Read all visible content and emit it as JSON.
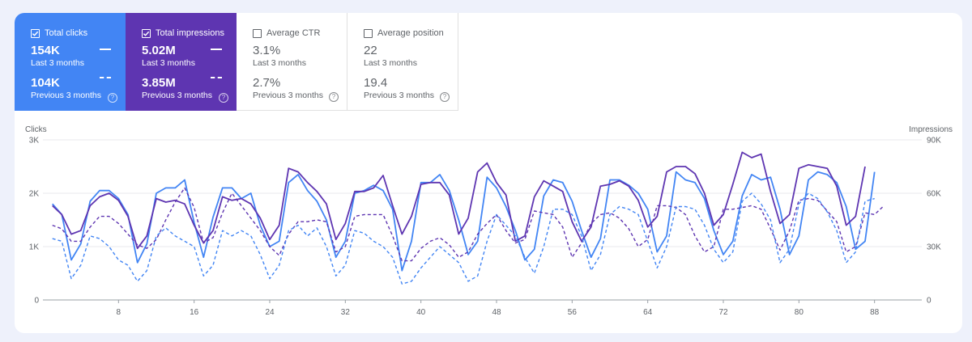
{
  "metrics": {
    "total_clicks": {
      "label": "Total clicks",
      "checked": true,
      "current": "154K",
      "current_label": "Last 3 months",
      "previous": "104K",
      "previous_label": "Previous 3 months"
    },
    "total_impressions": {
      "label": "Total impressions",
      "checked": true,
      "current": "5.02M",
      "current_label": "Last 3 months",
      "previous": "3.85M",
      "previous_label": "Previous 3 months"
    },
    "average_ctr": {
      "label": "Average CTR",
      "checked": false,
      "current": "3.1%",
      "current_label": "Last 3 months",
      "previous": "2.7%",
      "previous_label": "Previous 3 months"
    },
    "average_position": {
      "label": "Average position",
      "checked": false,
      "current": "22",
      "current_label": "Last 3 months",
      "previous": "19.4",
      "previous_label": "Previous 3 months"
    }
  },
  "help_glyph": "?",
  "colors": {
    "clicks": "#4285f4",
    "impressions": "#5e35b1",
    "ctr_off": "#5f6368"
  },
  "chart_data": {
    "type": "line",
    "ylabel": "Clicks",
    "y2label": "Impressions",
    "ylim": [
      0,
      3000
    ],
    "y2lim": [
      0,
      90000
    ],
    "yticks": [
      "0",
      "1K",
      "2K",
      "3K"
    ],
    "y2ticks": [
      "0",
      "30K",
      "60K",
      "90K"
    ],
    "xlim": [
      0,
      93
    ],
    "xticks": [
      8,
      16,
      24,
      32,
      40,
      48,
      56,
      64,
      72,
      80,
      88
    ],
    "grid": true,
    "series": [
      {
        "name": "Total clicks",
        "axis": "left",
        "style": "solid",
        "color": "#4285f4",
        "values": [
          1800,
          1600,
          750,
          1050,
          1850,
          2050,
          2050,
          1900,
          1600,
          700,
          1050,
          2000,
          2100,
          2100,
          2250,
          1450,
          800,
          1550,
          2100,
          2100,
          1900,
          2000,
          1400,
          1000,
          1100,
          2200,
          2350,
          2050,
          1850,
          1500,
          800,
          1100,
          2000,
          2050,
          2150,
          2050,
          1700,
          550,
          1100,
          2200,
          2200,
          2350,
          2050,
          1500,
          850,
          1100,
          2300,
          2100,
          1750,
          1300,
          750,
          950,
          1950,
          2250,
          2200,
          1850,
          1300,
          800,
          1150,
          2250,
          2250,
          2150,
          2000,
          1700,
          900,
          1200,
          2400,
          2250,
          2200,
          1900,
          1300,
          850,
          1100,
          1950,
          2350,
          2250,
          2300,
          1700,
          850,
          1200,
          2250,
          2400,
          2350,
          2200,
          1750,
          950,
          1100,
          2400
        ]
      },
      {
        "name": "Total impressions",
        "axis": "right",
        "style": "solid",
        "color": "#5e35b1",
        "values": [
          53000,
          48000,
          37000,
          39000,
          53000,
          58000,
          60000,
          56000,
          47000,
          29000,
          36000,
          57000,
          55000,
          56000,
          54000,
          42000,
          32000,
          39000,
          58000,
          56000,
          57000,
          54000,
          46000,
          34000,
          42000,
          74000,
          72000,
          66000,
          61000,
          54000,
          34000,
          43000,
          61000,
          61000,
          63000,
          70000,
          53000,
          37000,
          47000,
          65000,
          66000,
          66000,
          59000,
          37000,
          46000,
          72000,
          77000,
          66000,
          59000,
          33000,
          36000,
          58000,
          67000,
          64000,
          61000,
          44000,
          33000,
          41000,
          64000,
          65000,
          67000,
          64000,
          56000,
          41000,
          47000,
          72000,
          75000,
          75000,
          71000,
          60000,
          42000,
          48000,
          65000,
          83000,
          80000,
          82000,
          61000,
          43000,
          48000,
          74000,
          76000,
          75000,
          74000,
          64000,
          42000,
          47000,
          75000
        ]
      },
      {
        "name": "Total impressions (previous)",
        "axis": "right",
        "style": "dashed",
        "color": "#5e35b1",
        "values": [
          42000,
          40000,
          33000,
          33000,
          41000,
          47000,
          47000,
          43000,
          37000,
          31000,
          29000,
          34000,
          45000,
          55000,
          63000,
          52000,
          32000,
          35000,
          49000,
          60000,
          53000,
          46000,
          39000,
          30000,
          25000,
          37000,
          44000,
          44000,
          45000,
          44000,
          27000,
          30000,
          47000,
          48000,
          48000,
          48000,
          36000,
          22000,
          22000,
          29000,
          33000,
          35000,
          31000,
          24000,
          27000,
          37000,
          43000,
          48000,
          39000,
          32000,
          34000,
          50000,
          49000,
          48000,
          41000,
          24000,
          32000,
          43000,
          48000,
          49000,
          46000,
          40000,
          30000,
          34000,
          53000,
          53000,
          52000,
          48000,
          36000,
          27000,
          30000,
          51000,
          51000,
          52000,
          53000,
          51000,
          40000,
          28000,
          39000,
          56000,
          57000,
          56000,
          50000,
          44000,
          27000,
          30000,
          49000,
          48000,
          53000
        ]
      },
      {
        "name": "Total clicks (previous)",
        "axis": "left",
        "style": "dashed",
        "color": "#4285f4",
        "values": [
          1150,
          1100,
          400,
          650,
          1200,
          1150,
          1000,
          750,
          650,
          350,
          550,
          1200,
          1350,
          1200,
          1100,
          1000,
          450,
          650,
          1300,
          1200,
          1300,
          1200,
          850,
          400,
          650,
          1300,
          1400,
          1200,
          1350,
          1000,
          450,
          650,
          1300,
          1250,
          1100,
          1000,
          800,
          300,
          350,
          600,
          800,
          1000,
          850,
          700,
          350,
          450,
          1100,
          1600,
          1400,
          1200,
          800,
          500,
          1000,
          1700,
          1700,
          1600,
          1200,
          550,
          850,
          1600,
          1750,
          1700,
          1600,
          1100,
          600,
          1000,
          1750,
          1750,
          1700,
          1400,
          950,
          700,
          900,
          1850,
          2000,
          1800,
          1500,
          700,
          950,
          1800,
          2000,
          1900,
          1650,
          1300,
          700,
          900,
          1850,
          1900
        ]
      }
    ]
  }
}
